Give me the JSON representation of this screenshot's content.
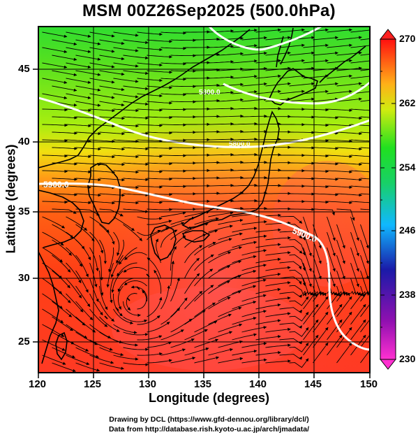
{
  "title": "MSM 00Z26Sep2025 (500.0hPa)",
  "x_axis": {
    "label": "Longitude (degrees)",
    "ticks": [
      "120",
      "125",
      "130",
      "135",
      "140",
      "145",
      "150"
    ]
  },
  "y_axis": {
    "label": "Latitude  (degrees)",
    "ticks": [
      "25",
      "30",
      "35",
      "40",
      "45"
    ]
  },
  "colorbar": {
    "min": 230,
    "max": 270,
    "ticks": [
      "270",
      "262",
      "254",
      "246",
      "238",
      "230"
    ],
    "colors": [
      "#ff2fd0",
      "#1a1aa8",
      "#1fb0ff",
      "#18e04a",
      "#ffd81a",
      "#ff5a14",
      "#ff0000"
    ]
  },
  "contours": [
    {
      "label": "5900.0"
    },
    {
      "label": "5900.0"
    },
    {
      "label": "5800.0"
    },
    {
      "label": "5800.0"
    }
  ],
  "credits": {
    "line1": "Drawing by DCL (https://www.gfd-dennou.org/library/dcl/)",
    "line2": "Data from http://database.rish.kyoto-u.ac.jp/arch/jmadata/"
  },
  "map_extent": {
    "lon": [
      120,
      150
    ],
    "lat": [
      22.7,
      47.8
    ]
  }
}
